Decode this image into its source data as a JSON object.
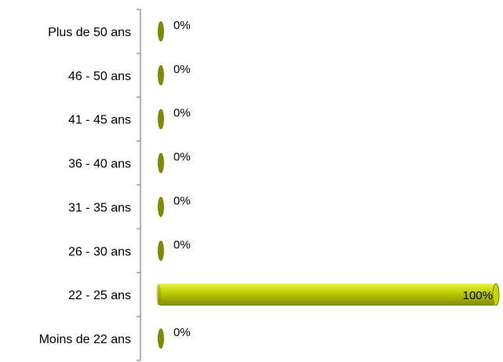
{
  "chart_data": {
    "type": "bar",
    "orientation": "horizontal",
    "categories": [
      "Plus de 50 ans",
      "46 - 50 ans",
      "41 - 45 ans",
      "36 - 40 ans",
      "31 - 35 ans",
      "26 - 30 ans",
      "22 - 25 ans",
      "Moins de 22 ans"
    ],
    "values": [
      0,
      0,
      0,
      0,
      0,
      0,
      100,
      0
    ],
    "value_labels": [
      "0%",
      "0%",
      "0%",
      "0%",
      "0%",
      "0%",
      "100%",
      "0%"
    ],
    "unit": "%",
    "xlim": [
      0,
      100
    ],
    "grid": false,
    "legend": "none",
    "colors": {
      "bar": "#c6d300",
      "bar_dark": "#7f8a00",
      "bar_light": "#eaf24a",
      "axis": "#9a9a9a",
      "text": "#000000"
    }
  }
}
